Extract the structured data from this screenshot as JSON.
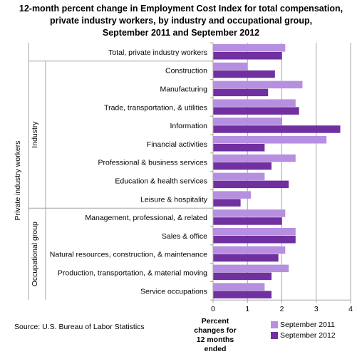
{
  "title_lines": [
    "12-month percent change in Employment Cost Index for total compensation,",
    "private industry workers, by industry and occupational group,",
    "September 2011 and September 2012"
  ],
  "source": "Source: U.S. Bureau of Labor Statistics",
  "xlabel_lines": [
    "Percent changes for",
    "12 months ended"
  ],
  "colors": {
    "September 2011": "#b78fe0",
    "September 2012": "#7030a0",
    "grid": "#a6a6a6"
  },
  "chart_data": {
    "type": "bar",
    "orientation": "horizontal",
    "title": "12-month percent change in Employment Cost Index for total compensation, private industry workers, by industry and occupational group, September 2011 and September 2012",
    "xlabel": "Percent changes for 12 months ended",
    "ylabel": "Private industry workers",
    "xlim": [
      0,
      4
    ],
    "xticks": [
      0,
      1,
      2,
      3,
      4
    ],
    "grid": true,
    "legend_position": "bottom-right",
    "categories": [
      "Total, private industry workers",
      "Construction",
      "Manufacturing",
      "Trade, transportation, & utilities",
      "Information",
      "Financial activities",
      "Professional & business services",
      "Education & health services",
      "Leisure & hospitality",
      "Management, professional, & related",
      "Sales & office",
      "Natural resources, construction, & maintenance",
      "Production, transportation, & material moving",
      "Service occupations"
    ],
    "groups": [
      {
        "label": "Industry",
        "categories": [
          1,
          8
        ]
      },
      {
        "label": "Occupational group",
        "categories": [
          9,
          13
        ]
      }
    ],
    "series": [
      {
        "name": "September 2011",
        "values": [
          2.1,
          1.0,
          2.6,
          2.4,
          2.0,
          3.3,
          2.4,
          1.5,
          1.1,
          2.1,
          2.4,
          2.1,
          2.2,
          1.5
        ]
      },
      {
        "name": "September 2012",
        "values": [
          2.0,
          1.8,
          1.6,
          2.5,
          3.7,
          1.5,
          1.7,
          2.2,
          0.8,
          2.0,
          2.4,
          1.9,
          1.7,
          1.7
        ]
      }
    ]
  }
}
